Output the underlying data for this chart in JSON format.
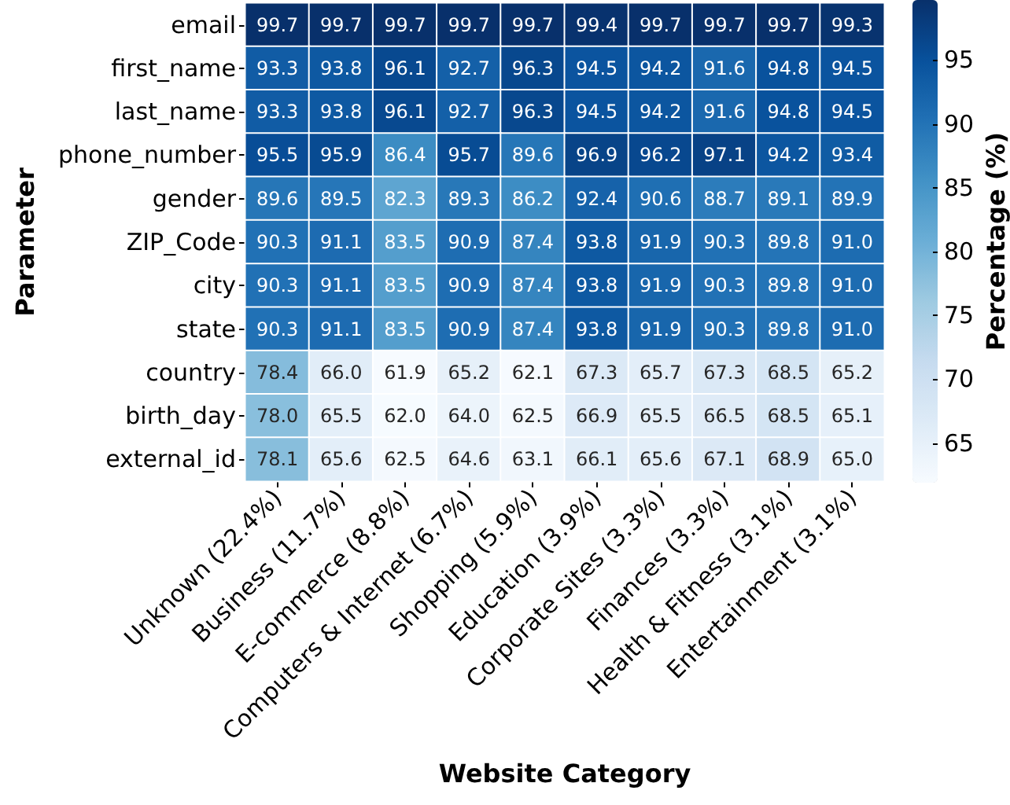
{
  "chart_data": {
    "type": "heatmap",
    "xlabel": "Website Category",
    "ylabel": "Parameter",
    "clabel": "Percentage (%)",
    "categories": [
      "Unknown (22.4%)",
      "Business (11.7%)",
      "E-commerce (8.8%)",
      "Computers & Internet (6.7%)",
      "Shopping (5.9%)",
      "Education (3.9%)",
      "Corporate Sites (3.3%)",
      "Finances (3.3%)",
      "Health & Fitness (3.1%)",
      "Entertainment (3.1%)"
    ],
    "y_categories": [
      "email",
      "first_name",
      "last_name",
      "phone_number",
      "gender",
      "ZIP_Code",
      "city",
      "state",
      "country",
      "birth_day",
      "external_id"
    ],
    "cells": [
      [
        99.7,
        99.7,
        99.7,
        99.7,
        99.7,
        99.4,
        99.7,
        99.7,
        99.7,
        99.3
      ],
      [
        93.3,
        93.8,
        96.1,
        92.7,
        96.3,
        94.5,
        94.2,
        91.6,
        94.8,
        94.5
      ],
      [
        93.3,
        93.8,
        96.1,
        92.7,
        96.3,
        94.5,
        94.2,
        91.6,
        94.8,
        94.5
      ],
      [
        95.5,
        95.9,
        86.4,
        95.7,
        89.6,
        96.9,
        96.2,
        97.1,
        94.2,
        93.4
      ],
      [
        89.6,
        89.5,
        82.3,
        89.3,
        86.2,
        92.4,
        90.6,
        88.7,
        89.1,
        89.9
      ],
      [
        90.3,
        91.1,
        83.5,
        90.9,
        87.4,
        93.8,
        91.9,
        90.3,
        89.8,
        91.0
      ],
      [
        90.3,
        91.1,
        83.5,
        90.9,
        87.4,
        93.8,
        91.9,
        90.3,
        89.8,
        91.0
      ],
      [
        90.3,
        91.1,
        83.5,
        90.9,
        87.4,
        93.8,
        91.9,
        90.3,
        89.8,
        91.0
      ],
      [
        78.4,
        66.0,
        61.9,
        65.2,
        62.1,
        67.3,
        65.7,
        67.3,
        68.5,
        65.2
      ],
      [
        78.0,
        65.5,
        62.0,
        64.0,
        62.5,
        66.9,
        65.5,
        66.5,
        68.5,
        65.1
      ],
      [
        78.1,
        65.6,
        62.5,
        64.6,
        63.1,
        66.1,
        65.6,
        67.1,
        68.9,
        65.0
      ]
    ],
    "cell_labels": [
      [
        "99.7",
        "99.7",
        "99.7",
        "99.7",
        "99.7",
        "99.4",
        "99.7",
        "99.7",
        "99.7",
        "99.3"
      ],
      [
        "93.3",
        "93.8",
        "96.1",
        "92.7",
        "96.3",
        "94.5",
        "94.2",
        "91.6",
        "94.8",
        "94.5"
      ],
      [
        "93.3",
        "93.8",
        "96.1",
        "92.7",
        "96.3",
        "94.5",
        "94.2",
        "91.6",
        "94.8",
        "94.5"
      ],
      [
        "95.5",
        "95.9",
        "86.4",
        "95.7",
        "89.6",
        "96.9",
        "96.2",
        "97.1",
        "94.2",
        "93.4"
      ],
      [
        "89.6",
        "89.5",
        "82.3",
        "89.3",
        "86.2",
        "92.4",
        "90.6",
        "88.7",
        "89.1",
        "89.9"
      ],
      [
        "90.3",
        "91.1",
        "83.5",
        "90.9",
        "87.4",
        "93.8",
        "91.9",
        "90.3",
        "89.8",
        "91.0"
      ],
      [
        "90.3",
        "91.1",
        "83.5",
        "90.9",
        "87.4",
        "93.8",
        "91.9",
        "90.3",
        "89.8",
        "91.0"
      ],
      [
        "90.3",
        "91.1",
        "83.5",
        "90.9",
        "87.4",
        "93.8",
        "91.9",
        "90.3",
        "89.8",
        "91.0"
      ],
      [
        "78.4",
        "66.0",
        "61.9",
        "65.2",
        "62.1",
        "67.3",
        "65.7",
        "67.3",
        "68.5",
        "65.2"
      ],
      [
        "78.0",
        "65.5",
        "62.0",
        "64.0",
        "62.5",
        "66.9",
        "65.5",
        "66.5",
        "68.5",
        "65.1"
      ],
      [
        "78.1",
        "65.6",
        "62.5",
        "64.6",
        "63.1",
        "66.1",
        "65.6",
        "67.1",
        "68.9",
        "65.0"
      ]
    ],
    "clim": [
      61.9,
      99.7
    ],
    "cticks": [
      65,
      70,
      75,
      80,
      85,
      90,
      95
    ],
    "data_labels": true
  }
}
